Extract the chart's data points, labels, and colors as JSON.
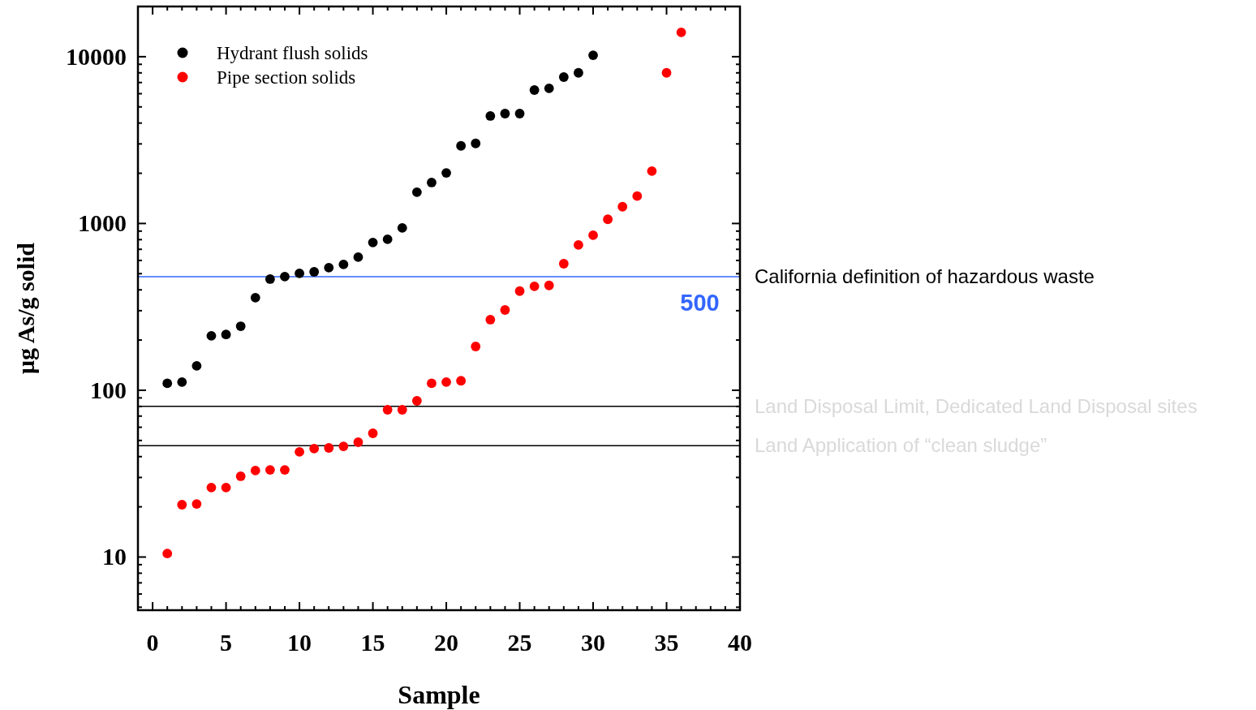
{
  "chart_data": {
    "type": "scatter",
    "xlabel": "Sample",
    "ylabel": "μg As/g solid",
    "log": "y",
    "marker": "circle",
    "grid": false,
    "legend": "top left",
    "xlim": [
      -1,
      40
    ],
    "ylim": [
      4.8,
      20000
    ],
    "xticks": [
      0,
      {
        "value": 1,
        "label": null
      },
      {
        "value": 2,
        "label": null
      },
      {
        "value": 3,
        "label": null
      },
      {
        "value": 4,
        "label": null
      },
      5,
      {
        "value": 6,
        "label": null
      },
      {
        "value": 7,
        "label": null
      },
      {
        "value": 8,
        "label": null
      },
      {
        "value": 9,
        "label": null
      },
      10,
      {
        "value": 11,
        "label": null
      },
      {
        "value": 12,
        "label": null
      },
      {
        "value": 13,
        "label": null
      },
      {
        "value": 14,
        "label": null
      },
      15,
      {
        "value": 16,
        "label": null
      },
      {
        "value": 17,
        "label": null
      },
      {
        "value": 18,
        "label": null
      },
      {
        "value": 19,
        "label": null
      },
      20,
      {
        "value": 21,
        "label": null
      },
      {
        "value": 22,
        "label": null
      },
      {
        "value": 23,
        "label": null
      },
      {
        "value": 24,
        "label": null
      },
      25,
      {
        "value": 26,
        "label": null
      },
      {
        "value": 27,
        "label": null
      },
      {
        "value": 28,
        "label": null
      },
      {
        "value": 29,
        "label": null
      },
      30,
      {
        "value": 31,
        "label": null
      },
      {
        "value": 32,
        "label": null
      },
      {
        "value": 33,
        "label": null
      },
      {
        "value": 34,
        "label": null
      },
      35,
      {
        "value": 36,
        "label": null
      },
      {
        "value": 37,
        "label": null
      },
      {
        "value": 38,
        "label": null
      },
      {
        "value": 39,
        "label": null
      },
      40
    ],
    "yticks": [
      {
        "value": 5,
        "label": null
      },
      {
        "value": 6,
        "label": null
      },
      {
        "value": 7,
        "label": null
      },
      {
        "value": 8,
        "label": null
      },
      {
        "value": 9,
        "label": null
      },
      10,
      {
        "value": 20,
        "label": null
      },
      {
        "value": 30,
        "label": null
      },
      {
        "value": 40,
        "label": null
      },
      {
        "value": 50,
        "label": null
      },
      {
        "value": 60,
        "label": null
      },
      {
        "value": 70,
        "label": null
      },
      {
        "value": 80,
        "label": null
      },
      {
        "value": 90,
        "label": null
      },
      100,
      {
        "value": 200,
        "label": null
      },
      {
        "value": 300,
        "label": null
      },
      {
        "value": 400,
        "label": null
      },
      {
        "value": 500,
        "label": null
      },
      {
        "value": 600,
        "label": null
      },
      {
        "value": 700,
        "label": null
      },
      {
        "value": 800,
        "label": null
      },
      {
        "value": 900,
        "label": null
      },
      1000,
      {
        "value": 2000,
        "label": null
      },
      {
        "value": 3000,
        "label": null
      },
      {
        "value": 4000,
        "label": null
      },
      {
        "value": 5000,
        "label": null
      },
      {
        "value": 6000,
        "label": null
      },
      {
        "value": 7000,
        "label": null
      },
      {
        "value": 8000,
        "label": null
      },
      {
        "value": 9000,
        "label": null
      },
      10000
    ],
    "series": [
      {
        "name": "Hydrant flush solids",
        "color": "#000000",
        "x": [
          1,
          2,
          3,
          4,
          5,
          6,
          7,
          8,
          9,
          10,
          11,
          12,
          13,
          14,
          15,
          16,
          17,
          18,
          19,
          20,
          21,
          22,
          23,
          24,
          25,
          26,
          27,
          28,
          29,
          30
        ],
        "values": [
          110,
          112,
          140,
          212,
          216,
          242,
          359,
          464,
          480,
          502,
          513,
          543,
          568,
          628,
          769,
          804,
          940,
          1540,
          1760,
          2010,
          2920,
          3020,
          4410,
          4560,
          4560,
          6310,
          6460,
          7550,
          8000,
          10200
        ]
      },
      {
        "name": "Pipe section solids",
        "color": "#ff0000",
        "x": [
          1,
          2,
          3,
          4,
          5,
          6,
          7,
          8,
          9,
          10,
          11,
          12,
          13,
          14,
          15,
          16,
          17,
          18,
          19,
          20,
          21,
          22,
          23,
          24,
          25,
          26,
          27,
          28,
          29,
          30,
          31,
          32,
          33,
          34,
          35,
          36
        ],
        "values": [
          10.5,
          20.6,
          20.8,
          26.1,
          26.1,
          30.5,
          33,
          33.3,
          33.3,
          42.7,
          44.7,
          45.1,
          46.1,
          48.8,
          55.2,
          76.4,
          76.4,
          86.4,
          110,
          112,
          114,
          183,
          265,
          303,
          393,
          420,
          425,
          574,
          743,
          850,
          1060,
          1260,
          1460,
          2060,
          8000,
          14000
        ]
      }
    ],
    "ref_lines": [
      {
        "axis": "y",
        "value": 480,
        "label": "California definition of hazardous waste",
        "color": "#3366ff"
      },
      {
        "axis": "y",
        "value": 80,
        "label": "Land Disposal Limit, Dedicated Land Disposal sites",
        "color": "#000000"
      },
      {
        "axis": "y",
        "value": 46.5,
        "label": "Land Application of “clean sludge”",
        "color": "#000000"
      }
    ],
    "annotations": [
      {
        "text": "500",
        "x": 38.6,
        "y": 480
      }
    ]
  }
}
